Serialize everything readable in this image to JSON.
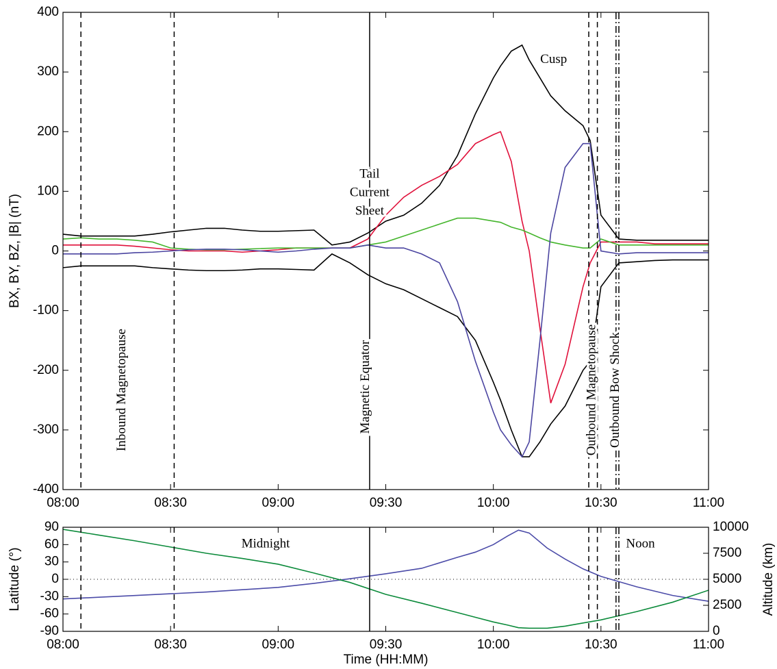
{
  "chart_data": [
    {
      "type": "line",
      "ylabel": "BX, BY, BZ, |B| (nT)",
      "xlim": [
        480,
        660
      ],
      "xticks": [
        {
          "value": 480,
          "label": "08:00"
        },
        {
          "value": 510,
          "label": "08:30"
        },
        {
          "value": 540,
          "label": "09:00"
        },
        {
          "value": 570,
          "label": "09:30"
        },
        {
          "value": 600,
          "label": "10:00"
        },
        {
          "value": 630,
          "label": "10:30"
        },
        {
          "value": 660,
          "label": "11:00"
        }
      ],
      "ylim": [
        -400,
        400
      ],
      "yticks": [
        -400,
        -300,
        -200,
        -100,
        0,
        100,
        200,
        300,
        400
      ],
      "x": [
        480,
        485,
        490,
        495,
        500,
        505,
        510,
        515,
        520,
        525,
        530,
        535,
        540,
        545,
        550,
        555,
        560,
        565,
        570,
        575,
        580,
        585,
        590,
        595,
        600,
        602,
        605,
        608,
        610,
        613,
        616,
        620,
        625,
        627,
        630,
        635,
        640,
        645,
        650,
        655,
        660
      ],
      "series": [
        {
          "color": "#000000",
          "values": [
            28,
            25,
            25,
            25,
            25,
            28,
            32,
            35,
            38,
            38,
            35,
            33,
            33,
            34,
            35,
            10,
            15,
            30,
            50,
            60,
            80,
            110,
            160,
            230,
            290,
            310,
            335,
            345,
            320,
            290,
            260,
            235,
            210,
            185,
            60,
            20,
            18,
            18,
            18,
            18,
            18
          ]
        },
        {
          "color": "#000000",
          "values": [
            -28,
            -25,
            -25,
            -25,
            -25,
            -28,
            -30,
            -32,
            -33,
            -33,
            -32,
            -30,
            -30,
            -31,
            -32,
            -5,
            -20,
            -40,
            -55,
            -65,
            -80,
            -95,
            -110,
            -150,
            -220,
            -250,
            -300,
            -345,
            -345,
            -320,
            -290,
            -260,
            -200,
            -185,
            -60,
            -20,
            -18,
            -16,
            -15,
            -15,
            -15
          ]
        },
        {
          "color": "#e0103a",
          "values": [
            10,
            10,
            10,
            10,
            8,
            5,
            2,
            0,
            0,
            0,
            -2,
            0,
            2,
            5,
            5,
            5,
            5,
            20,
            60,
            90,
            110,
            125,
            145,
            180,
            195,
            200,
            150,
            50,
            0,
            -130,
            -255,
            -190,
            -60,
            -20,
            15,
            15,
            15,
            12,
            12,
            12,
            12
          ]
        },
        {
          "color": "#44b52c",
          "values": [
            20,
            22,
            20,
            20,
            18,
            15,
            5,
            3,
            2,
            2,
            3,
            4,
            5,
            5,
            5,
            5,
            5,
            10,
            15,
            25,
            35,
            45,
            55,
            55,
            50,
            48,
            40,
            35,
            30,
            22,
            15,
            10,
            5,
            5,
            20,
            10,
            10,
            10,
            10,
            10,
            10
          ]
        },
        {
          "color": "#4a44a0",
          "values": [
            -5,
            -5,
            -5,
            -5,
            -3,
            -2,
            0,
            2,
            3,
            3,
            2,
            0,
            -2,
            0,
            3,
            5,
            5,
            10,
            5,
            5,
            -5,
            -20,
            -85,
            -185,
            -270,
            -300,
            -325,
            -345,
            -320,
            -150,
            30,
            140,
            180,
            180,
            0,
            -5,
            -3,
            -3,
            -3,
            -3,
            -3
          ]
        }
      ],
      "vlines": [
        {
          "x": 485,
          "style": "dashed"
        },
        {
          "x": 511,
          "style": "dashed"
        },
        {
          "x": 565.5,
          "style": "solid"
        },
        {
          "x": 626.6,
          "style": "dashed"
        },
        {
          "x": 629,
          "style": "dashed"
        },
        {
          "x": 634.2,
          "style": "dashdot"
        },
        {
          "x": 635,
          "style": "dashdot"
        }
      ],
      "annotations": [
        {
          "text": "Inbound Magnetopause",
          "x": 496.5,
          "y": -233,
          "rotate": true
        },
        {
          "text": "Magnetic Equator",
          "x": 564.5,
          "y": -228,
          "rotate": true
        },
        {
          "text": "Outbound Magnetopause",
          "x": 627.6,
          "y": -233,
          "rotate": true
        },
        {
          "text": "Outbound Bow Shock",
          "x": 634.2,
          "y": -233,
          "rotate": true
        },
        {
          "text": "Cusp",
          "x": 616.8,
          "y": 320,
          "rotate": false
        }
      ],
      "stacked_annotation": {
        "lines": [
          "Tail",
          "Current",
          "Sheet"
        ],
        "x": 565.5,
        "y": 128
      }
    },
    {
      "type": "line",
      "xlabel": "Time (HH:MM)",
      "ylabel": "Latitude (°)",
      "y2label": "Altitude (km)",
      "xlim": [
        480,
        660
      ],
      "xticks": [
        {
          "value": 480,
          "label": "08:00"
        },
        {
          "value": 510,
          "label": "08:30"
        },
        {
          "value": 540,
          "label": "09:00"
        },
        {
          "value": 570,
          "label": "09:30"
        },
        {
          "value": 600,
          "label": "10:00"
        },
        {
          "value": 630,
          "label": "10:30"
        },
        {
          "value": 660,
          "label": "11:00"
        }
      ],
      "ylim": [
        -90,
        90
      ],
      "yticks": [
        -90,
        -60,
        -30,
        0,
        30,
        60,
        90
      ],
      "y2lim": [
        0,
        10000
      ],
      "y2ticks": [
        0,
        2500,
        5000,
        7500,
        10000
      ],
      "ycolor": "#4b4ba8",
      "y2color": "#0b8a3a",
      "hline": 0,
      "x": [
        480,
        490,
        500,
        510,
        520,
        530,
        540,
        550,
        560,
        570,
        580,
        590,
        595,
        600,
        604,
        607,
        610,
        615,
        620,
        625,
        630,
        640,
        650,
        660
      ],
      "series": [
        {
          "color": "#4b4ba8",
          "values": [
            -34,
            -31,
            -28,
            -25,
            -22,
            -18,
            -14,
            -7,
            1,
            9.5,
            19,
            38,
            47,
            60,
            75,
            85,
            80,
            54,
            35,
            18,
            5,
            -13,
            -28,
            -38
          ]
        },
        {
          "color": "#0b8a3a",
          "axis": "y2",
          "values": [
            9800,
            9250,
            8700,
            8100,
            7500,
            7000,
            6450,
            5600,
            4700,
            3550,
            2700,
            1800,
            1350,
            900,
            600,
            350,
            300,
            300,
            500,
            800,
            1100,
            1900,
            2800,
            3950
          ]
        }
      ],
      "vlines": [
        {
          "x": 485,
          "style": "dashed"
        },
        {
          "x": 511,
          "style": "dashed"
        },
        {
          "x": 565.5,
          "style": "solid"
        },
        {
          "x": 626.6,
          "style": "dashed"
        },
        {
          "x": 629,
          "style": "dashed"
        },
        {
          "x": 634.2,
          "style": "dashdot"
        },
        {
          "x": 635,
          "style": "dashdot"
        }
      ],
      "annotations": [
        {
          "text": "Midnight",
          "x": 536.5,
          "y": 60,
          "rotate": false
        },
        {
          "text": "Noon",
          "x": 641,
          "y": 60,
          "rotate": false
        }
      ]
    }
  ]
}
